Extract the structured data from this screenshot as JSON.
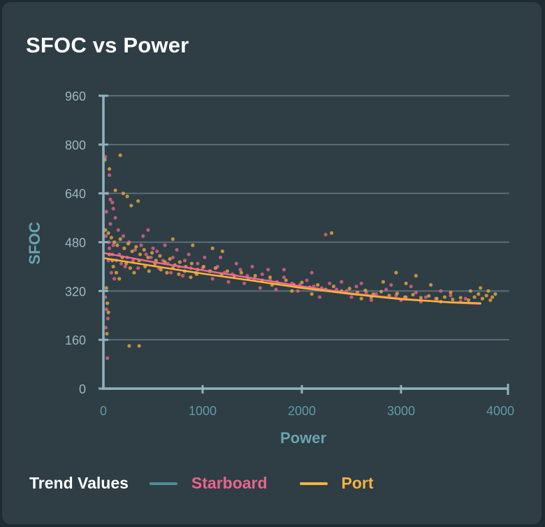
{
  "card": {
    "title": "SFOC vs Power"
  },
  "legend": {
    "label": "Trend Values",
    "items": [
      {
        "name": "Starboard",
        "swatch_color": "#4e8e98",
        "text_color": "#e8658a"
      },
      {
        "name": "Port",
        "swatch_color": "#f5b43f",
        "text_color": "#f5b43f"
      }
    ]
  },
  "colors": {
    "background": "#2f3d45",
    "axis": "#8fb3bf",
    "grid": "#5b6e77",
    "tick_label": "#9db7c0",
    "x_tick_label": "#5f9aa6",
    "axis_title": "#6aa3ae",
    "starboard_points": "#e0638a",
    "port_points": "#e8a83c",
    "starboard_trend": "#f06a90",
    "port_trend": "#fbb33a"
  },
  "chart_data": {
    "type": "scatter",
    "title": "SFOC vs Power",
    "xlabel": "Power",
    "ylabel": "SFOC",
    "xlim": [
      0,
      4080
    ],
    "ylim": [
      0,
      960
    ],
    "xticks": [
      0,
      1000,
      2000,
      3000,
      4000
    ],
    "yticks": [
      0,
      160,
      320,
      480,
      640,
      800,
      960
    ],
    "grid": "horizontal",
    "legend_position": "bottom",
    "series": [
      {
        "name": "Starboard",
        "kind": "scatter",
        "points": [
          [
            20,
            760
          ],
          [
            60,
            700
          ],
          [
            40,
            640
          ],
          [
            90,
            610
          ],
          [
            30,
            580
          ],
          [
            120,
            560
          ],
          [
            70,
            540
          ],
          [
            150,
            520
          ],
          [
            25,
            500
          ],
          [
            55,
            480
          ],
          [
            100,
            470
          ],
          [
            200,
            500
          ],
          [
            260,
            480
          ],
          [
            320,
            455
          ],
          [
            380,
            470
          ],
          [
            430,
            440
          ],
          [
            480,
            430
          ],
          [
            540,
            450
          ],
          [
            600,
            420
          ],
          [
            650,
            410
          ],
          [
            700,
            430
          ],
          [
            760,
            400
          ],
          [
            820,
            420
          ],
          [
            880,
            395
          ],
          [
            950,
            410
          ],
          [
            1000,
            395
          ],
          [
            1080,
            385
          ],
          [
            1150,
            400
          ],
          [
            1220,
            380
          ],
          [
            1300,
            375
          ],
          [
            1380,
            390
          ],
          [
            1450,
            370
          ],
          [
            1520,
            360
          ],
          [
            1600,
            375
          ],
          [
            1680,
            355
          ],
          [
            1750,
            350
          ],
          [
            1820,
            365
          ],
          [
            1900,
            345
          ],
          [
            1980,
            340
          ],
          [
            2050,
            355
          ],
          [
            2120,
            335
          ],
          [
            2200,
            330
          ],
          [
            2280,
            345
          ],
          [
            2350,
            325
          ],
          [
            2450,
            320
          ],
          [
            2550,
            335
          ],
          [
            2650,
            315
          ],
          [
            2750,
            310
          ],
          [
            2850,
            325
          ],
          [
            2950,
            305
          ],
          [
            3050,
            300
          ],
          [
            3150,
            315
          ],
          [
            3250,
            300
          ],
          [
            3350,
            295
          ],
          [
            3500,
            305
          ],
          [
            3650,
            295
          ],
          [
            20,
            300
          ],
          [
            30,
            260
          ],
          [
            45,
            230
          ],
          [
            25,
            200
          ],
          [
            50,
            420
          ],
          [
            80,
            380
          ],
          [
            110,
            360
          ],
          [
            160,
            440
          ],
          [
            180,
            410
          ],
          [
            220,
            400
          ],
          [
            240,
            430
          ],
          [
            300,
            420
          ],
          [
            350,
            395
          ],
          [
            400,
            500
          ],
          [
            450,
            520
          ],
          [
            500,
            460
          ],
          [
            560,
            395
          ],
          [
            620,
            470
          ],
          [
            680,
            380
          ],
          [
            740,
            455
          ],
          [
            800,
            370
          ],
          [
            860,
            440
          ],
          [
            930,
            380
          ],
          [
            1020,
            430
          ],
          [
            1100,
            360
          ],
          [
            1180,
            430
          ],
          [
            1260,
            350
          ],
          [
            1340,
            410
          ],
          [
            1420,
            345
          ],
          [
            1500,
            400
          ],
          [
            1580,
            330
          ],
          [
            1660,
            390
          ],
          [
            1740,
            325
          ],
          [
            1820,
            390
          ],
          [
            1960,
            320
          ],
          [
            2100,
            380
          ],
          [
            2180,
            300
          ],
          [
            2240,
            505
          ],
          [
            2400,
            350
          ],
          [
            2500,
            300
          ],
          [
            2600,
            345
          ],
          [
            2700,
            290
          ],
          [
            2900,
            340
          ],
          [
            3000,
            290
          ],
          [
            3100,
            335
          ],
          [
            3200,
            285
          ],
          [
            3400,
            320
          ],
          [
            3600,
            285
          ],
          [
            40,
            100
          ],
          [
            60,
            460
          ],
          [
            90,
            440
          ],
          [
            130,
            420
          ],
          [
            70,
            620
          ],
          [
            100,
            590
          ]
        ]
      },
      {
        "name": "Port",
        "kind": "scatter",
        "points": [
          [
            15,
            750
          ],
          [
            170,
            765
          ],
          [
            60,
            720
          ],
          [
            120,
            650
          ],
          [
            200,
            640
          ],
          [
            240,
            630
          ],
          [
            280,
            600
          ],
          [
            350,
            615
          ],
          [
            20,
            520
          ],
          [
            50,
            510
          ],
          [
            80,
            495
          ],
          [
            110,
            480
          ],
          [
            140,
            470
          ],
          [
            170,
            490
          ],
          [
            210,
            460
          ],
          [
            250,
            475
          ],
          [
            290,
            450
          ],
          [
            330,
            465
          ],
          [
            370,
            440
          ],
          [
            410,
            455
          ],
          [
            450,
            430
          ],
          [
            490,
            445
          ],
          [
            530,
            420
          ],
          [
            570,
            435
          ],
          [
            620,
            415
          ],
          [
            670,
            425
          ],
          [
            720,
            405
          ],
          [
            770,
            415
          ],
          [
            830,
            400
          ],
          [
            890,
            410
          ],
          [
            950,
            390
          ],
          [
            1010,
            400
          ],
          [
            1070,
            385
          ],
          [
            1130,
            395
          ],
          [
            1190,
            375
          ],
          [
            1250,
            385
          ],
          [
            1320,
            370
          ],
          [
            1390,
            380
          ],
          [
            1460,
            360
          ],
          [
            1530,
            370
          ],
          [
            1600,
            355
          ],
          [
            1680,
            365
          ],
          [
            1760,
            345
          ],
          [
            1840,
            355
          ],
          [
            1920,
            340
          ],
          [
            2000,
            348
          ],
          [
            2080,
            332
          ],
          [
            2160,
            340
          ],
          [
            2240,
            325
          ],
          [
            2320,
            335
          ],
          [
            2400,
            320
          ],
          [
            2480,
            328
          ],
          [
            2560,
            315
          ],
          [
            2640,
            322
          ],
          [
            2720,
            310
          ],
          [
            2800,
            318
          ],
          [
            2880,
            305
          ],
          [
            2960,
            312
          ],
          [
            3040,
            300
          ],
          [
            3120,
            308
          ],
          [
            3200,
            298
          ],
          [
            3280,
            304
          ],
          [
            3360,
            295
          ],
          [
            3440,
            300
          ],
          [
            3520,
            292
          ],
          [
            3600,
            298
          ],
          [
            3680,
            290
          ],
          [
            3740,
            300
          ],
          [
            3780,
            310
          ],
          [
            3820,
            295
          ],
          [
            3860,
            305
          ],
          [
            3900,
            290
          ],
          [
            3920,
            300
          ],
          [
            3950,
            310
          ],
          [
            3880,
            320
          ],
          [
            3800,
            330
          ],
          [
            3700,
            320
          ],
          [
            3500,
            315
          ],
          [
            3300,
            340
          ],
          [
            3150,
            370
          ],
          [
            3050,
            345
          ],
          [
            2950,
            380
          ],
          [
            2820,
            350
          ],
          [
            2300,
            510
          ],
          [
            1200,
            450
          ],
          [
            1100,
            460
          ],
          [
            900,
            470
          ],
          [
            700,
            490
          ],
          [
            30,
            330
          ],
          [
            40,
            280
          ],
          [
            50,
            250
          ],
          [
            35,
            180
          ],
          [
            60,
            440
          ],
          [
            90,
            420
          ],
          [
            100,
            400
          ],
          [
            130,
            380
          ],
          [
            160,
            360
          ],
          [
            190,
            430
          ],
          [
            230,
            410
          ],
          [
            270,
            395
          ],
          [
            310,
            380
          ],
          [
            360,
            420
          ],
          [
            420,
            400
          ],
          [
            460,
            385
          ],
          [
            520,
            410
          ],
          [
            580,
            390
          ],
          [
            640,
            380
          ],
          [
            700,
            395
          ],
          [
            760,
            375
          ],
          [
            820,
            385
          ],
          [
            880,
            365
          ],
          [
            940,
            375
          ],
          [
            260,
            140
          ],
          [
            360,
            140
          ],
          [
            1700,
            340
          ],
          [
            1900,
            320
          ],
          [
            2100,
            310
          ],
          [
            2600,
            295
          ],
          [
            2700,
            300
          ],
          [
            3400,
            285
          ]
        ]
      },
      {
        "name": "Starboard",
        "kind": "trend",
        "points": [
          [
            0,
            445
          ],
          [
            500,
            415
          ],
          [
            1000,
            388
          ],
          [
            1500,
            362
          ],
          [
            2000,
            335
          ],
          [
            2500,
            312
          ],
          [
            3000,
            295
          ],
          [
            3500,
            282
          ],
          [
            3800,
            278
          ]
        ]
      },
      {
        "name": "Port",
        "kind": "trend",
        "points": [
          [
            0,
            428
          ],
          [
            500,
            402
          ],
          [
            1000,
            377
          ],
          [
            1500,
            354
          ],
          [
            2000,
            330
          ],
          [
            2500,
            310
          ],
          [
            3000,
            293
          ],
          [
            3500,
            283
          ],
          [
            3800,
            280
          ]
        ]
      }
    ]
  }
}
